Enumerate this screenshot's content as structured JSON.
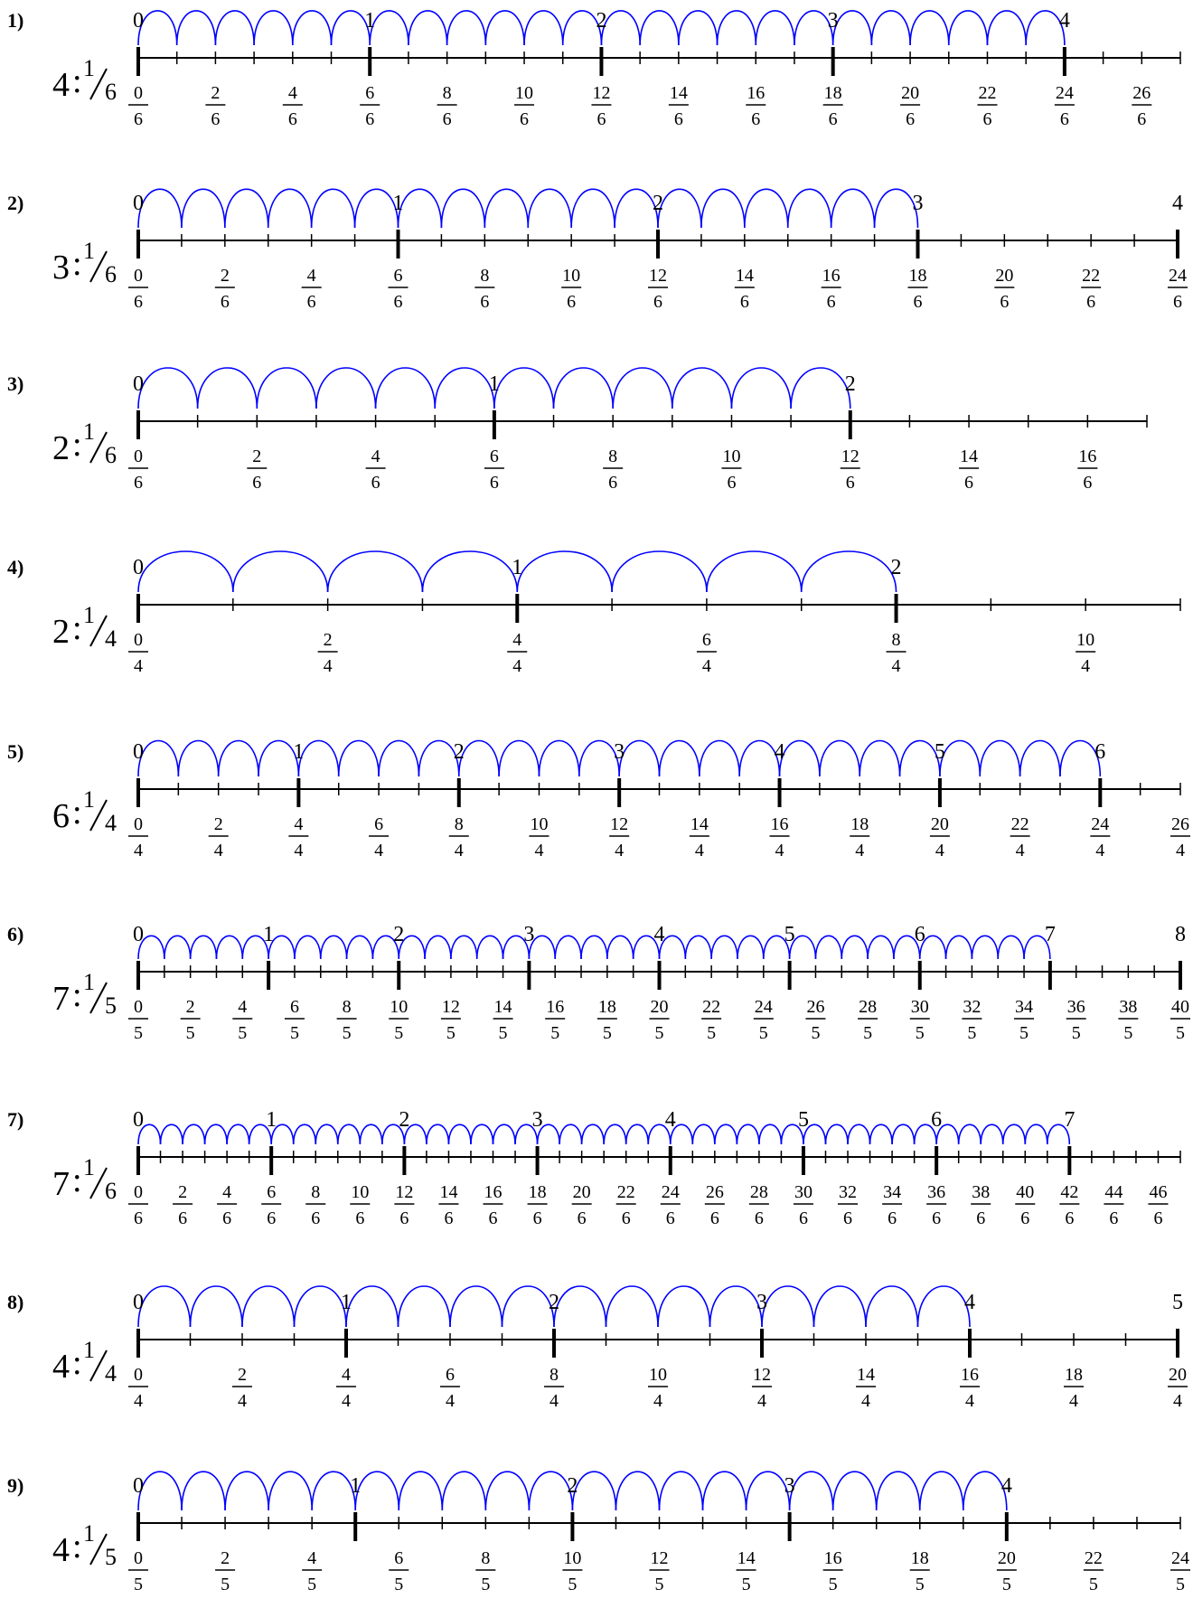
{
  "worksheet": {
    "problems": [
      {
        "number": "1)",
        "dividend": "4",
        "unit_num": "1",
        "unit_den": "6",
        "jumps": 24,
        "total_ticks": 27,
        "den": 6,
        "wholes_labeled": [
          "0",
          "1",
          "2",
          "3",
          "4"
        ],
        "fractions": [
          "0",
          "2",
          "4",
          "6",
          "8",
          "10",
          "12",
          "14",
          "16",
          "18",
          "20",
          "22",
          "24",
          "26"
        ]
      },
      {
        "number": "2)",
        "dividend": "3",
        "unit_num": "1",
        "unit_den": "6",
        "jumps": 18,
        "total_ticks": 24,
        "den": 6,
        "wholes_labeled": [
          "0",
          "1",
          "2",
          "3",
          "4"
        ],
        "fractions": [
          "0",
          "2",
          "4",
          "6",
          "8",
          "10",
          "12",
          "14",
          "16",
          "18",
          "20",
          "22",
          "24"
        ]
      },
      {
        "number": "3)",
        "dividend": "2",
        "unit_num": "1",
        "unit_den": "6",
        "jumps": 12,
        "total_ticks": 17,
        "den": 6,
        "wholes_labeled": [
          "0",
          "1",
          "2"
        ],
        "fractions": [
          "0",
          "2",
          "4",
          "6",
          "8",
          "10",
          "12",
          "14",
          "16"
        ]
      },
      {
        "number": "4)",
        "dividend": "2",
        "unit_num": "1",
        "unit_den": "4",
        "jumps": 8,
        "total_ticks": 11,
        "den": 4,
        "wholes_labeled": [
          "0",
          "1",
          "2"
        ],
        "fractions": [
          "0",
          "2",
          "4",
          "6",
          "8",
          "10"
        ]
      },
      {
        "number": "5)",
        "dividend": "6",
        "unit_num": "1",
        "unit_den": "4",
        "jumps": 24,
        "total_ticks": 26,
        "den": 4,
        "wholes_labeled": [
          "0",
          "1",
          "2",
          "3",
          "4",
          "5",
          "6"
        ],
        "fractions": [
          "0",
          "2",
          "4",
          "6",
          "8",
          "10",
          "12",
          "14",
          "16",
          "18",
          "20",
          "22",
          "24",
          "26"
        ]
      },
      {
        "number": "6)",
        "dividend": "7",
        "unit_num": "1",
        "unit_den": "5",
        "jumps": 35,
        "total_ticks": 40,
        "den": 5,
        "wholes_labeled": [
          "0",
          "1",
          "2",
          "3",
          "4",
          "5",
          "6",
          "7",
          "8"
        ],
        "fractions": [
          "0",
          "2",
          "4",
          "6",
          "8",
          "10",
          "12",
          "14",
          "16",
          "18",
          "20",
          "22",
          "24",
          "26",
          "28",
          "30",
          "32",
          "34",
          "36",
          "38",
          "40"
        ]
      },
      {
        "number": "7)",
        "dividend": "7",
        "unit_num": "1",
        "unit_den": "6",
        "jumps": 42,
        "total_ticks": 47,
        "den": 6,
        "wholes_labeled": [
          "0",
          "1",
          "2",
          "3",
          "4",
          "5",
          "6",
          "7"
        ],
        "fractions": [
          "0",
          "2",
          "4",
          "6",
          "8",
          "10",
          "12",
          "14",
          "16",
          "18",
          "20",
          "22",
          "24",
          "26",
          "28",
          "30",
          "32",
          "34",
          "36",
          "38",
          "40",
          "42",
          "44",
          "46"
        ]
      },
      {
        "number": "8)",
        "dividend": "4",
        "unit_num": "1",
        "unit_den": "4",
        "jumps": 16,
        "total_ticks": 20,
        "den": 4,
        "wholes_labeled": [
          "0",
          "1",
          "2",
          "3",
          "4",
          "5"
        ],
        "fractions": [
          "0",
          "2",
          "4",
          "6",
          "8",
          "10",
          "12",
          "14",
          "16",
          "18",
          "20"
        ]
      },
      {
        "number": "9)",
        "dividend": "4",
        "unit_num": "1",
        "unit_den": "5",
        "jumps": 20,
        "total_ticks": 24,
        "den": 5,
        "wholes_labeled": [
          "0",
          "1",
          "2",
          "3",
          "4"
        ],
        "fractions": [
          "0",
          "2",
          "4",
          "6",
          "8",
          "10",
          "12",
          "14",
          "16",
          "18",
          "20",
          "22",
          "24"
        ]
      }
    ],
    "colors": {
      "jump": "#0000ff",
      "line": "#000000"
    }
  }
}
